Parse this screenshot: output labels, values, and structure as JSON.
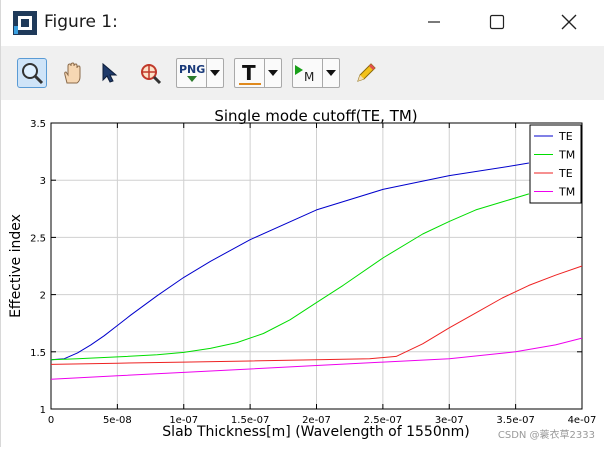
{
  "window": {
    "title": "Figure 1:",
    "controls": [
      "minimize",
      "maximize",
      "close"
    ]
  },
  "toolbar": {
    "tools": [
      {
        "name": "zoom-tool",
        "icon": "magnifier-icon",
        "active": true
      },
      {
        "name": "pan-tool",
        "icon": "hand-icon",
        "active": false
      },
      {
        "name": "select-tool",
        "icon": "arrow-cursor-icon",
        "active": false
      },
      {
        "name": "datatip-tool",
        "icon": "crosshair-magnifier-icon",
        "active": false
      },
      {
        "name": "export-png",
        "label": "PNG",
        "icon": "png-export-icon",
        "dropdown": true
      },
      {
        "name": "text-tool",
        "label": "T",
        "icon": "text-icon",
        "dropdown": true
      },
      {
        "name": "marker-tool",
        "label": "M",
        "icon": "marker-icon",
        "dropdown": true
      },
      {
        "name": "edit-tool",
        "icon": "pencil-icon",
        "active": false
      }
    ]
  },
  "chart_data": {
    "type": "line",
    "title": "Single mode cutoff(TE, TM)",
    "xlabel": "Slab Thickness[m] (Wavelength of 1550nm)",
    "ylabel": "Effective index",
    "xlim": [
      0,
      4e-07
    ],
    "ylim": [
      1.0,
      3.5
    ],
    "xticks": [
      0,
      5e-08,
      1e-07,
      1.5e-07,
      2e-07,
      2.5e-07,
      3e-07,
      3.5e-07,
      4e-07
    ],
    "xtick_labels": [
      "0",
      "5e-08",
      "1e-07",
      "1.5e-07",
      "2e-07",
      "2.5e-07",
      "3e-07",
      "3.5e-07",
      "4e-07"
    ],
    "yticks": [
      1,
      1.5,
      2,
      2.5,
      3,
      3.5
    ],
    "ytick_labels": [
      "1",
      "1.5",
      "2",
      "2.5",
      "3",
      "3.5"
    ],
    "grid": true,
    "legend_position": "top-right",
    "series": [
      {
        "name": "TE",
        "color": "#0000cc",
        "x": [
          0,
          1e-08,
          2e-08,
          3e-08,
          4e-08,
          5e-08,
          6e-08,
          8e-08,
          1e-07,
          1.2e-07,
          1.5e-07,
          2e-07,
          2.5e-07,
          3e-07,
          3.5e-07,
          3.6e-07
        ],
        "y": [
          1.43,
          1.44,
          1.49,
          1.56,
          1.64,
          1.73,
          1.82,
          1.99,
          2.15,
          2.29,
          2.48,
          2.74,
          2.92,
          3.04,
          3.13,
          3.15
        ]
      },
      {
        "name": "TM",
        "color": "#00dd00",
        "x": [
          0,
          2e-08,
          5e-08,
          8e-08,
          1e-07,
          1.2e-07,
          1.4e-07,
          1.6e-07,
          1.8e-07,
          2e-07,
          2.2e-07,
          2.5e-07,
          2.8e-07,
          3e-07,
          3.2e-07,
          3.4e-07,
          3.6e-07
        ],
        "y": [
          1.43,
          1.44,
          1.455,
          1.475,
          1.495,
          1.53,
          1.58,
          1.66,
          1.78,
          1.93,
          2.08,
          2.32,
          2.53,
          2.64,
          2.74,
          2.81,
          2.88
        ]
      },
      {
        "name": "TE",
        "color": "#ee2222",
        "x": [
          0,
          5e-08,
          1e-07,
          1.5e-07,
          2e-07,
          2.4e-07,
          2.6e-07,
          2.8e-07,
          3e-07,
          3.2e-07,
          3.4e-07,
          3.6e-07,
          3.8e-07,
          4e-07
        ],
        "y": [
          1.39,
          1.4,
          1.41,
          1.42,
          1.43,
          1.44,
          1.46,
          1.57,
          1.71,
          1.84,
          1.97,
          2.08,
          2.17,
          2.25
        ]
      },
      {
        "name": "TM",
        "color": "#ee00ee",
        "x": [
          0,
          5e-08,
          1e-07,
          1.5e-07,
          2e-07,
          2.5e-07,
          3e-07,
          3.5e-07,
          3.8e-07,
          4e-07
        ],
        "y": [
          1.26,
          1.29,
          1.32,
          1.35,
          1.38,
          1.41,
          1.44,
          1.5,
          1.56,
          1.62
        ]
      }
    ]
  },
  "watermark": "CSDN @蓑衣草2333"
}
